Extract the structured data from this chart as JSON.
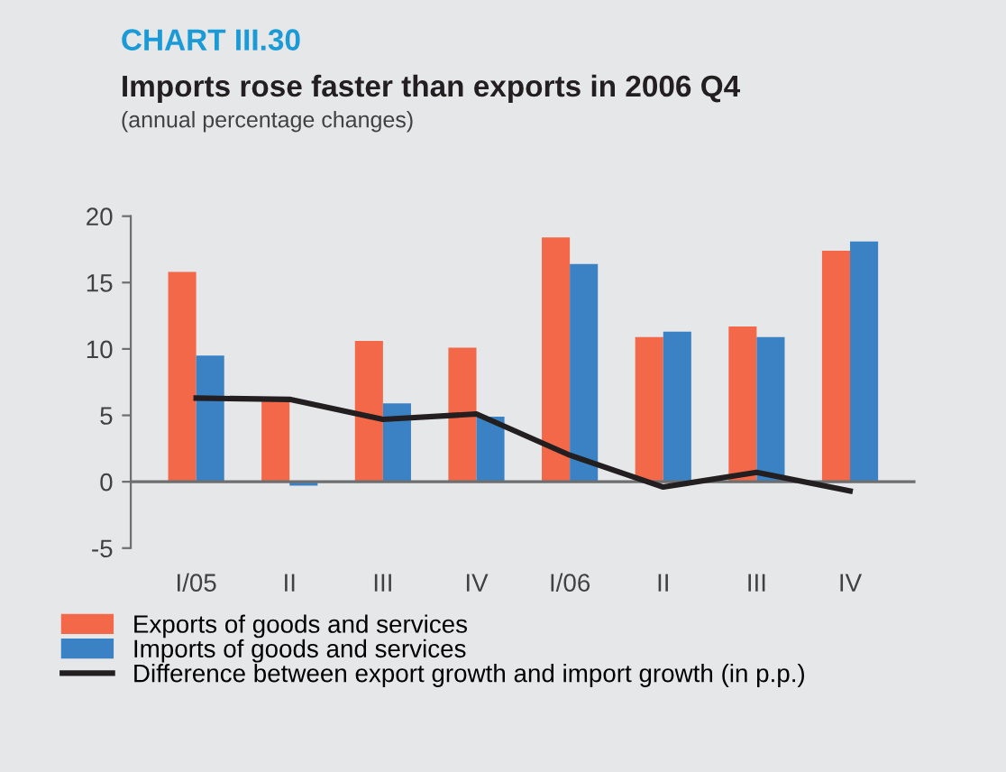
{
  "chart_data": {
    "type": "bar",
    "title": "Imports rose faster than exports in 2006 Q4",
    "subtitle": "(annual percentage changes)",
    "annotations": [
      "CHART III.30"
    ],
    "categories": [
      "I/05",
      "II",
      "III",
      "IV",
      "I/06",
      "II",
      "III",
      "IV"
    ],
    "series": [
      {
        "name": "Exports of goods and services",
        "color": "#f26849",
        "values": [
          15.8,
          6.1,
          10.6,
          10.1,
          18.4,
          10.9,
          11.7,
          17.4
        ]
      },
      {
        "name": "Imports of goods and services",
        "color": "#3b82c4",
        "values": [
          9.5,
          -0.3,
          5.9,
          4.9,
          16.4,
          11.3,
          10.9,
          18.1
        ]
      },
      {
        "name": "Difference between export growth and import growth (in p.p.)",
        "type": "line",
        "color": "#231f20",
        "values": [
          6.3,
          6.2,
          4.7,
          5.1,
          2.0,
          -0.4,
          0.7,
          -0.7
        ]
      }
    ],
    "ylim": [
      -5,
      20
    ],
    "yticks": [
      -5,
      0,
      5,
      10,
      15,
      20
    ],
    "ref_lines": [
      {
        "axis": "y",
        "value": 0,
        "color": "#6d6e70"
      }
    ],
    "grid": false,
    "legend": "bottom"
  }
}
